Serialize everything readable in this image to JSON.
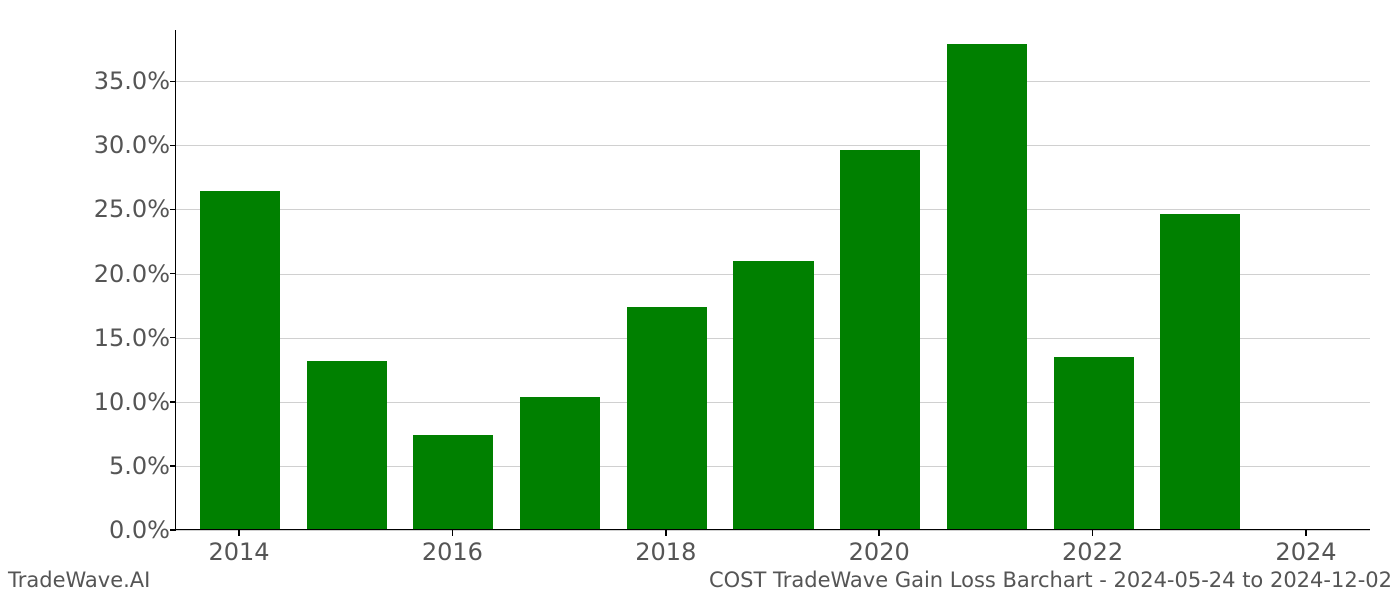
{
  "chart": {
    "type": "bar",
    "years": [
      2014,
      2015,
      2016,
      2017,
      2018,
      2019,
      2020,
      2021,
      2022,
      2023,
      2024
    ],
    "values": [
      26.4,
      13.1,
      7.3,
      10.3,
      17.3,
      20.9,
      29.6,
      37.8,
      13.4,
      24.6,
      0.0
    ],
    "bar_color": "#008000",
    "background_color": "#ffffff",
    "grid_color": "#b0b0b0",
    "axis_color": "#000000",
    "tick_label_color": "#555555",
    "ylim_min": 0.0,
    "ylim_max": 39.0,
    "yticks": [
      0.0,
      5.0,
      10.0,
      15.0,
      20.0,
      25.0,
      30.0,
      35.0
    ],
    "ytick_labels": [
      "0.0%",
      "5.0%",
      "10.0%",
      "15.0%",
      "20.0%",
      "25.0%",
      "30.0%",
      "35.0%"
    ],
    "xticks": [
      2014,
      2016,
      2018,
      2020,
      2022,
      2024
    ],
    "xtick_labels": [
      "2014",
      "2016",
      "2018",
      "2020",
      "2022",
      "2024"
    ],
    "xlim_min": 2013.4,
    "xlim_max": 2024.6,
    "bar_width": 0.75,
    "tick_fontsize": 24,
    "footer_fontsize": 21
  },
  "footer": {
    "left": "TradeWave.AI",
    "right": "COST TradeWave Gain Loss Barchart - 2024-05-24 to 2024-12-02"
  }
}
